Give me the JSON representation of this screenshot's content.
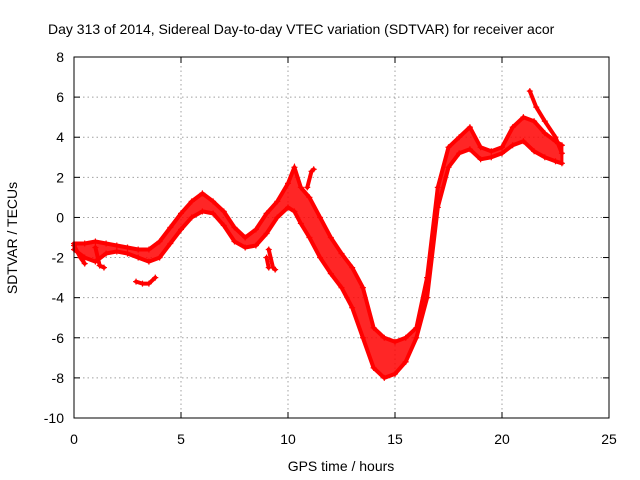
{
  "chart_data": {
    "type": "scatter",
    "title": "Day 313 of 2014, Sidereal Day-to-day VTEC variation (SDTVAR) for receiver acor",
    "xlabel": "GPS time / hours",
    "ylabel": "SDTVAR / TECUs",
    "xlim": [
      0,
      25
    ],
    "ylim": [
      -10,
      8
    ],
    "xticks": [
      0,
      5,
      10,
      15,
      20,
      25
    ],
    "yticks": [
      -10,
      -8,
      -6,
      -4,
      -2,
      0,
      2,
      4,
      6,
      8
    ],
    "grid": true,
    "marker": "plus",
    "color": "#ff0000",
    "series": [
      {
        "name": "band-upper",
        "x": [
          0,
          0.5,
          1,
          1.5,
          2,
          2.5,
          3,
          3.5,
          4,
          4.5,
          5,
          5.5,
          6,
          6.5,
          7,
          7.5,
          8,
          8.5,
          9,
          9.5,
          10,
          10.3,
          10.6,
          11,
          11.5,
          12,
          12.5,
          13,
          13.5,
          14,
          14.5,
          15,
          15.5,
          16,
          16.5,
          17,
          17.5,
          18,
          18.5,
          19,
          19.5,
          20,
          20.5,
          21,
          21.5,
          22,
          22.5,
          22.8
        ],
        "y": [
          -1.3,
          -1.3,
          -1.2,
          -1.3,
          -1.4,
          -1.5,
          -1.6,
          -1.6,
          -1.2,
          -0.5,
          0.2,
          0.8,
          1.2,
          0.8,
          0.3,
          -0.5,
          -1.0,
          -0.6,
          0.2,
          0.8,
          1.7,
          2.5,
          1.5,
          1.0,
          0.0,
          -1.0,
          -1.8,
          -2.5,
          -3.5,
          -5.5,
          -6.0,
          -6.2,
          -6.0,
          -5.5,
          -3.0,
          1.5,
          3.5,
          4.0,
          4.5,
          3.5,
          3.3,
          3.5,
          4.5,
          5.0,
          4.8,
          4.2,
          3.8,
          3.6
        ]
      },
      {
        "name": "band-lower",
        "x": [
          0,
          0.5,
          1,
          1.5,
          2,
          2.5,
          3,
          3.5,
          4,
          4.5,
          5,
          5.5,
          6,
          6.5,
          7,
          7.5,
          8,
          8.5,
          9,
          9.5,
          10,
          10.3,
          10.6,
          11,
          11.5,
          12,
          12.5,
          13,
          13.5,
          14,
          14.5,
          15,
          15.5,
          16,
          16.5,
          17,
          17.5,
          18,
          18.5,
          19,
          19.5,
          20,
          20.5,
          21,
          21.5,
          22,
          22.5,
          22.8
        ],
        "y": [
          -1.6,
          -2.0,
          -2.2,
          -1.8,
          -1.7,
          -1.8,
          -2.0,
          -2.2,
          -2.0,
          -1.3,
          -0.6,
          0.0,
          0.3,
          0.2,
          -0.4,
          -1.2,
          -1.5,
          -1.4,
          -0.8,
          0.0,
          0.5,
          0.3,
          -0.3,
          -1.0,
          -2.0,
          -2.8,
          -3.5,
          -4.5,
          -6.0,
          -7.5,
          -8.0,
          -7.8,
          -7.2,
          -6.0,
          -4.0,
          0.5,
          2.5,
          3.2,
          3.4,
          2.9,
          3.0,
          3.2,
          3.6,
          3.8,
          3.3,
          3.0,
          2.8,
          2.7
        ]
      }
    ],
    "annotation_traces": [
      {
        "name": "left-start-segment",
        "x": [
          0.0,
          0.3,
          0.5
        ],
        "y": [
          -1.4,
          -2.0,
          -2.3
        ]
      },
      {
        "name": "left-low-segment",
        "x": [
          1.0,
          1.2,
          1.4
        ],
        "y": [
          -1.5,
          -2.4,
          -2.5
        ]
      },
      {
        "name": "mid-start-segment",
        "x": [
          2.9,
          3.2,
          3.5,
          3.8
        ],
        "y": [
          -3.2,
          -3.3,
          -3.3,
          -3.0
        ]
      },
      {
        "name": "dip-9h",
        "x": [
          9.1,
          9.3,
          9.4
        ],
        "y": [
          -1.6,
          -2.5,
          -2.6
        ]
      },
      {
        "name": "dip-9h-inner",
        "x": [
          9.0,
          9.1
        ],
        "y": [
          -2.0,
          -2.5
        ]
      },
      {
        "name": "spike-10h",
        "x": [
          10.9,
          11.1,
          11.2
        ],
        "y": [
          1.5,
          2.3,
          2.4
        ]
      },
      {
        "name": "peak-21h",
        "x": [
          21.3,
          21.6,
          22.0,
          22.5,
          22.8
        ],
        "y": [
          6.3,
          5.5,
          4.8,
          4.0,
          3.2
        ]
      }
    ]
  }
}
